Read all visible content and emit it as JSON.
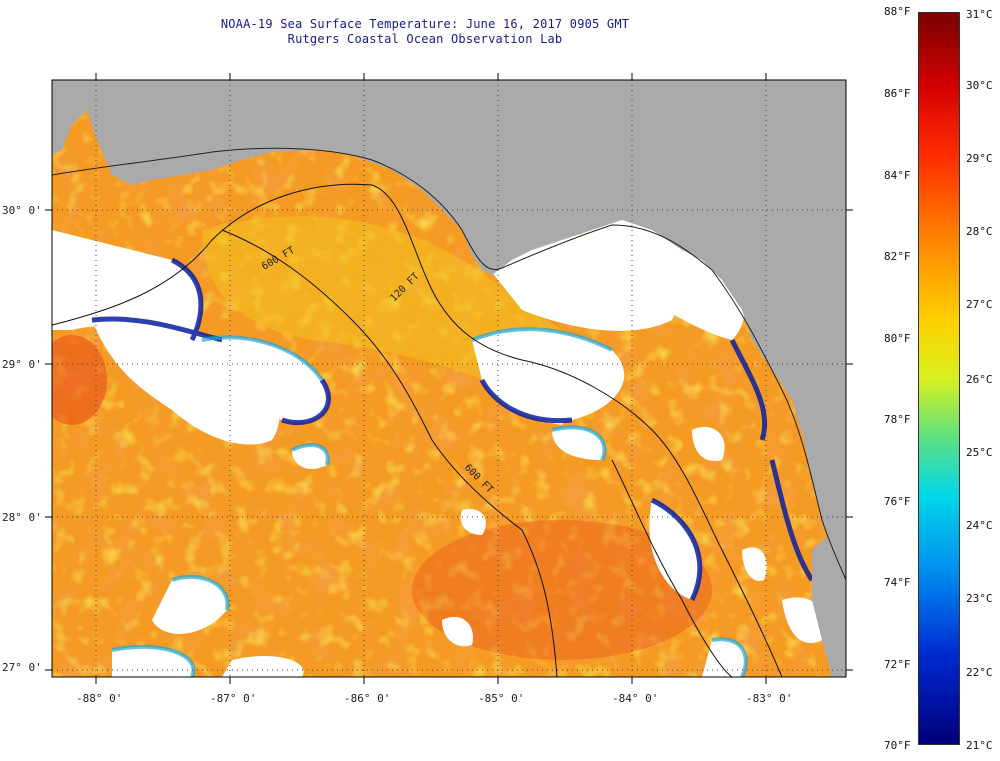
{
  "header": {
    "title_line1": "NOAA-19 Sea Surface Temperature:  June 16, 2017 0905 GMT",
    "title_line2": "Rutgers Coastal Ocean Observation Lab"
  },
  "map": {
    "lon_range": [
      -88.3,
      -82.35
    ],
    "lat_range": [
      26.92,
      30.85
    ],
    "lon_ticks": [
      "-88° 0'",
      "-87° 0'",
      "-86° 0'",
      "-85° 0'",
      "-84° 0'",
      "-83° 0'"
    ],
    "lat_ticks": [
      "30° 0'",
      "29° 0'",
      "28° 0'",
      "27° 0'"
    ],
    "contours": [
      "600 FT",
      "120 FT",
      "600 FT"
    ],
    "colors": {
      "land": "#aaaaaa",
      "cloud": "#ffffff",
      "warm": "#f59a22",
      "hot": "#e8481a",
      "mid": "#f4c21e",
      "cool": "#1fa6d8",
      "cold": "#0a1fa0"
    }
  },
  "colorbar": {
    "fahrenheit": [
      "88°F",
      "86°F",
      "84°F",
      "82°F",
      "80°F",
      "78°F",
      "76°F",
      "74°F",
      "72°F",
      "70°F"
    ],
    "celsius": [
      "31°C",
      "30°C",
      "29°C",
      "28°C",
      "27°C",
      "26°C",
      "25°C",
      "24°C",
      "23°C",
      "22°C",
      "21°C"
    ]
  }
}
